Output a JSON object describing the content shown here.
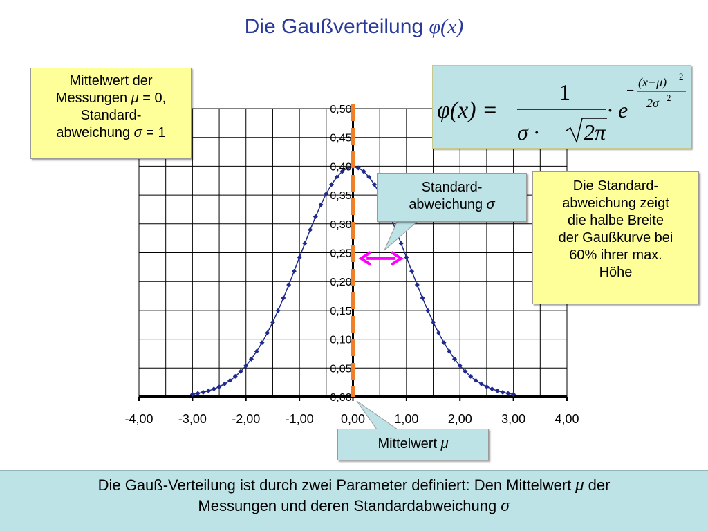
{
  "slide": {
    "title_text": "Die Gaußverteilung ",
    "title_symbol": "φ(x)",
    "mean_info": {
      "line1": "Mittelwert der",
      "line2a": "Messungen ",
      "line2_symbol": "μ",
      "line2b": " = 0,",
      "line3": "Standard-",
      "line4a": "abweichung ",
      "line4_symbol": "σ",
      "line4b": " = 1"
    },
    "formula": {
      "lhs": "φ(x) =",
      "numerator": "1",
      "denominator_sigma": "σ ·",
      "denominator_root": "2π",
      "dot_e": "· e",
      "exp_sign": "−",
      "exp_numerator": "(x−μ)",
      "exp_numerator_power": "2",
      "exp_denominator": "2σ",
      "exp_denominator_power": "2"
    },
    "width_info": {
      "line1": "Die Standard-",
      "line2": "abweichung zeigt",
      "line3": "die halbe Breite",
      "line4": "der Gaußkurve bei",
      "line5": "60% ihrer max.",
      "line6": "Höhe"
    },
    "std_callout": {
      "line1": "Standard-",
      "line2a": "abweichung ",
      "line2_symbol": "σ"
    },
    "mean_callout": {
      "text": "Mittelwert ",
      "symbol": "μ"
    },
    "footer": {
      "line1a": "Die Gauß-Verteilung ist durch zwei Parameter definiert: Den Mittelwert  ",
      "line1_symbol": "μ",
      "line1b": " der",
      "line2a": "Messungen und deren Standardabweichung ",
      "line2_symbol": "σ"
    },
    "colors": {
      "curve": "#1f2a8c",
      "mean_line": "#f07f2a",
      "arrow": "#ff00ff",
      "yellow_box": "#ffff99",
      "teal_box": "#bde3e6"
    }
  },
  "chart_data": {
    "type": "scatter",
    "xlim": [
      -4,
      4
    ],
    "ylim": [
      0,
      0.5
    ],
    "x_ticks": [
      "-4,00",
      "-3,00",
      "-2,00",
      "-1,00",
      "0,00",
      "1,00",
      "2,00",
      "3,00",
      "4,00"
    ],
    "y_ticks": [
      "0,00",
      "0,05",
      "0,10",
      "0,15",
      "0,20",
      "0,25",
      "0,30",
      "0,35",
      "0,40",
      "0,45",
      "0,50"
    ],
    "grid": true,
    "series": [
      {
        "x": [
          -3.0,
          -2.9,
          -2.8,
          -2.7,
          -2.6,
          -2.5,
          -2.4,
          -2.3,
          -2.2,
          -2.1,
          -2.0,
          -1.9,
          -1.8,
          -1.7,
          -1.6,
          -1.5,
          -1.4,
          -1.3,
          -1.2,
          -1.1,
          -1.0,
          -0.9,
          -0.8,
          -0.7,
          -0.6,
          -0.5,
          -0.4,
          -0.3,
          -0.2,
          -0.1,
          0.0,
          0.1,
          0.2,
          0.3,
          0.4,
          0.5,
          0.6,
          0.7,
          0.8,
          0.9,
          1.0,
          1.1,
          1.2,
          1.3,
          1.4,
          1.5,
          1.6,
          1.7,
          1.8,
          1.9,
          2.0,
          2.1,
          2.2,
          2.3,
          2.4,
          2.5,
          2.6,
          2.7,
          2.8,
          2.9,
          3.0
        ],
        "y": [
          0.0044,
          0.006,
          0.0079,
          0.0104,
          0.0136,
          0.0175,
          0.0224,
          0.0283,
          0.0355,
          0.044,
          0.054,
          0.0656,
          0.079,
          0.094,
          0.1109,
          0.1295,
          0.1497,
          0.1714,
          0.1942,
          0.2179,
          0.242,
          0.2661,
          0.2897,
          0.3123,
          0.3332,
          0.3521,
          0.3683,
          0.3814,
          0.391,
          0.397,
          0.3989,
          0.397,
          0.391,
          0.3814,
          0.3683,
          0.3521,
          0.3332,
          0.3123,
          0.2897,
          0.2661,
          0.242,
          0.2179,
          0.1942,
          0.1714,
          0.1497,
          0.1295,
          0.1109,
          0.094,
          0.079,
          0.0656,
          0.054,
          0.044,
          0.0355,
          0.0283,
          0.0224,
          0.0175,
          0.0136,
          0.0104,
          0.0079,
          0.006,
          0.0044
        ]
      }
    ],
    "mean_line_x": 0,
    "std_arrow": {
      "x_from": 0.15,
      "x_to": 0.9,
      "y": 0.24
    }
  }
}
